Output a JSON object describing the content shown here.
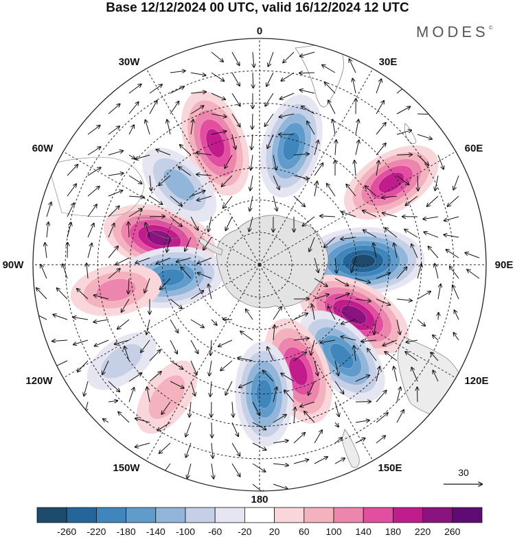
{
  "title": "Base 12/12/2024 00 UTC, valid 16/12/2024 12 UTC",
  "brand": "MODES",
  "brand_mark": "©",
  "map": {
    "projection": "south polar stereographic",
    "lon_labels": {
      "top": "0",
      "top_right": "30E",
      "right_upper": "60E",
      "right": "90E",
      "right_lower": "120E",
      "bottom_right": "150E",
      "bottom": "180",
      "bottom_left": "150W",
      "left_lower": "120W",
      "left": "90W",
      "left_upper": "60W",
      "top_left": "30W"
    },
    "vector_reference": "30",
    "anomaly_centers": [
      {
        "lat": -50,
        "lon": -20,
        "value": 200,
        "kind": "positive"
      },
      {
        "lat": -52,
        "lon": 15,
        "value": -180,
        "kind": "negative"
      },
      {
        "lat": -42,
        "lon": 58,
        "value": 180,
        "kind": "positive"
      },
      {
        "lat": -58,
        "lon": 88,
        "value": -260,
        "kind": "negative"
      },
      {
        "lat": -57,
        "lon": 118,
        "value": 240,
        "kind": "positive"
      },
      {
        "lat": -52,
        "lon": 138,
        "value": -200,
        "kind": "negative"
      },
      {
        "lat": -55,
        "lon": 160,
        "value": 200,
        "kind": "positive"
      },
      {
        "lat": -50,
        "lon": 178,
        "value": -180,
        "kind": "negative"
      },
      {
        "lat": -58,
        "lon": -75,
        "value": 220,
        "kind": "positive"
      },
      {
        "lat": -62,
        "lon": -98,
        "value": -200,
        "kind": "negative"
      },
      {
        "lat": -45,
        "lon": -100,
        "value": 120,
        "kind": "positive"
      },
      {
        "lat": -55,
        "lon": -45,
        "value": -120,
        "kind": "negative"
      },
      {
        "lat": -40,
        "lon": -145,
        "value": 80,
        "kind": "positive"
      },
      {
        "lat": -38,
        "lon": -125,
        "value": -60,
        "kind": "negative"
      }
    ]
  },
  "colorbar": {
    "colors": [
      "#1d4b6b",
      "#24659a",
      "#3f86bd",
      "#5f9ccb",
      "#91b6d9",
      "#c5cfe5",
      "#e6e6f2",
      "#ffffff",
      "#f8d6d9",
      "#f3b2be",
      "#ec86ac",
      "#e24ea0",
      "#c01c8c",
      "#8b1380",
      "#5e0c73"
    ],
    "tick_labels": [
      "-260",
      "-220",
      "-180",
      "-140",
      "-100",
      "-60",
      "-20",
      "20",
      "60",
      "100",
      "140",
      "180",
      "220",
      "260"
    ]
  }
}
